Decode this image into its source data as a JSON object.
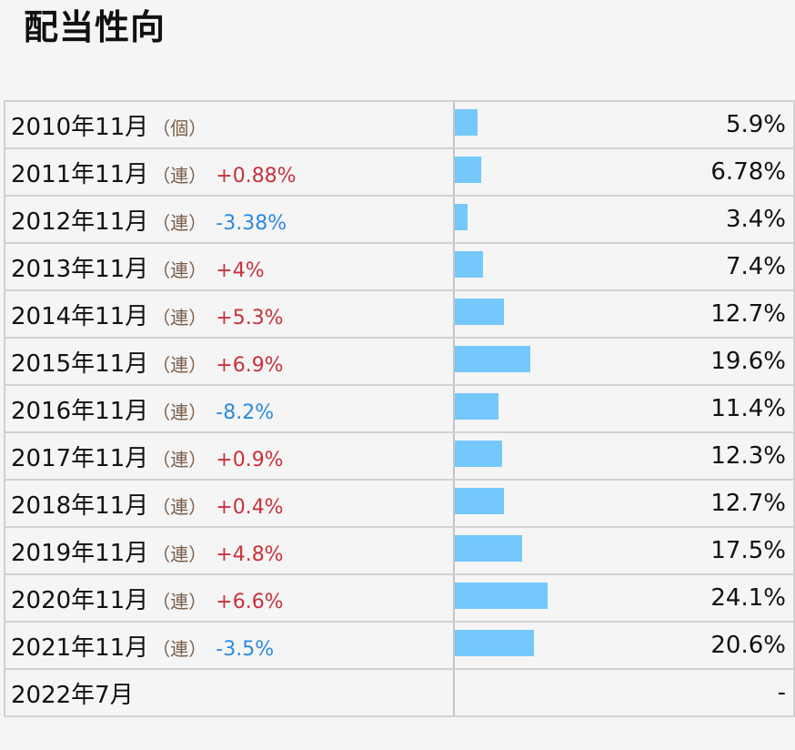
{
  "title": "配当性向",
  "accent_bar_color": "#74c8fb",
  "positive_color": "#c8323c",
  "negative_color": "#2b8ae0",
  "rows": [
    {
      "year": "2010年11月",
      "kind": "（個）",
      "change": "",
      "change_sign": "",
      "value_text": "5.9%",
      "value": 5.9
    },
    {
      "year": "2011年11月",
      "kind": "（連）",
      "change": "+0.88%",
      "change_sign": "pos",
      "value_text": "6.78%",
      "value": 6.78
    },
    {
      "year": "2012年11月",
      "kind": "（連）",
      "change": "-3.38%",
      "change_sign": "neg",
      "value_text": "3.4%",
      "value": 3.4
    },
    {
      "year": "2013年11月",
      "kind": "（連）",
      "change": "+4%",
      "change_sign": "pos",
      "value_text": "7.4%",
      "value": 7.4
    },
    {
      "year": "2014年11月",
      "kind": "（連）",
      "change": "+5.3%",
      "change_sign": "pos",
      "value_text": "12.7%",
      "value": 12.7
    },
    {
      "year": "2015年11月",
      "kind": "（連）",
      "change": "+6.9%",
      "change_sign": "pos",
      "value_text": "19.6%",
      "value": 19.6
    },
    {
      "year": "2016年11月",
      "kind": "（連）",
      "change": "-8.2%",
      "change_sign": "neg",
      "value_text": "11.4%",
      "value": 11.4
    },
    {
      "year": "2017年11月",
      "kind": "（連）",
      "change": "+0.9%",
      "change_sign": "pos",
      "value_text": "12.3%",
      "value": 12.3
    },
    {
      "year": "2018年11月",
      "kind": "（連）",
      "change": "+0.4%",
      "change_sign": "pos",
      "value_text": "12.7%",
      "value": 12.7
    },
    {
      "year": "2019年11月",
      "kind": "（連）",
      "change": "+4.8%",
      "change_sign": "pos",
      "value_text": "17.5%",
      "value": 17.5
    },
    {
      "year": "2020年11月",
      "kind": "（連）",
      "change": "+6.6%",
      "change_sign": "pos",
      "value_text": "24.1%",
      "value": 24.1
    },
    {
      "year": "2021年11月",
      "kind": "（連）",
      "change": "-3.5%",
      "change_sign": "neg",
      "value_text": "20.6%",
      "value": 20.6
    },
    {
      "year": "2022年7月",
      "kind": "",
      "change": "",
      "change_sign": "",
      "value_text": "-",
      "value": null
    }
  ]
}
